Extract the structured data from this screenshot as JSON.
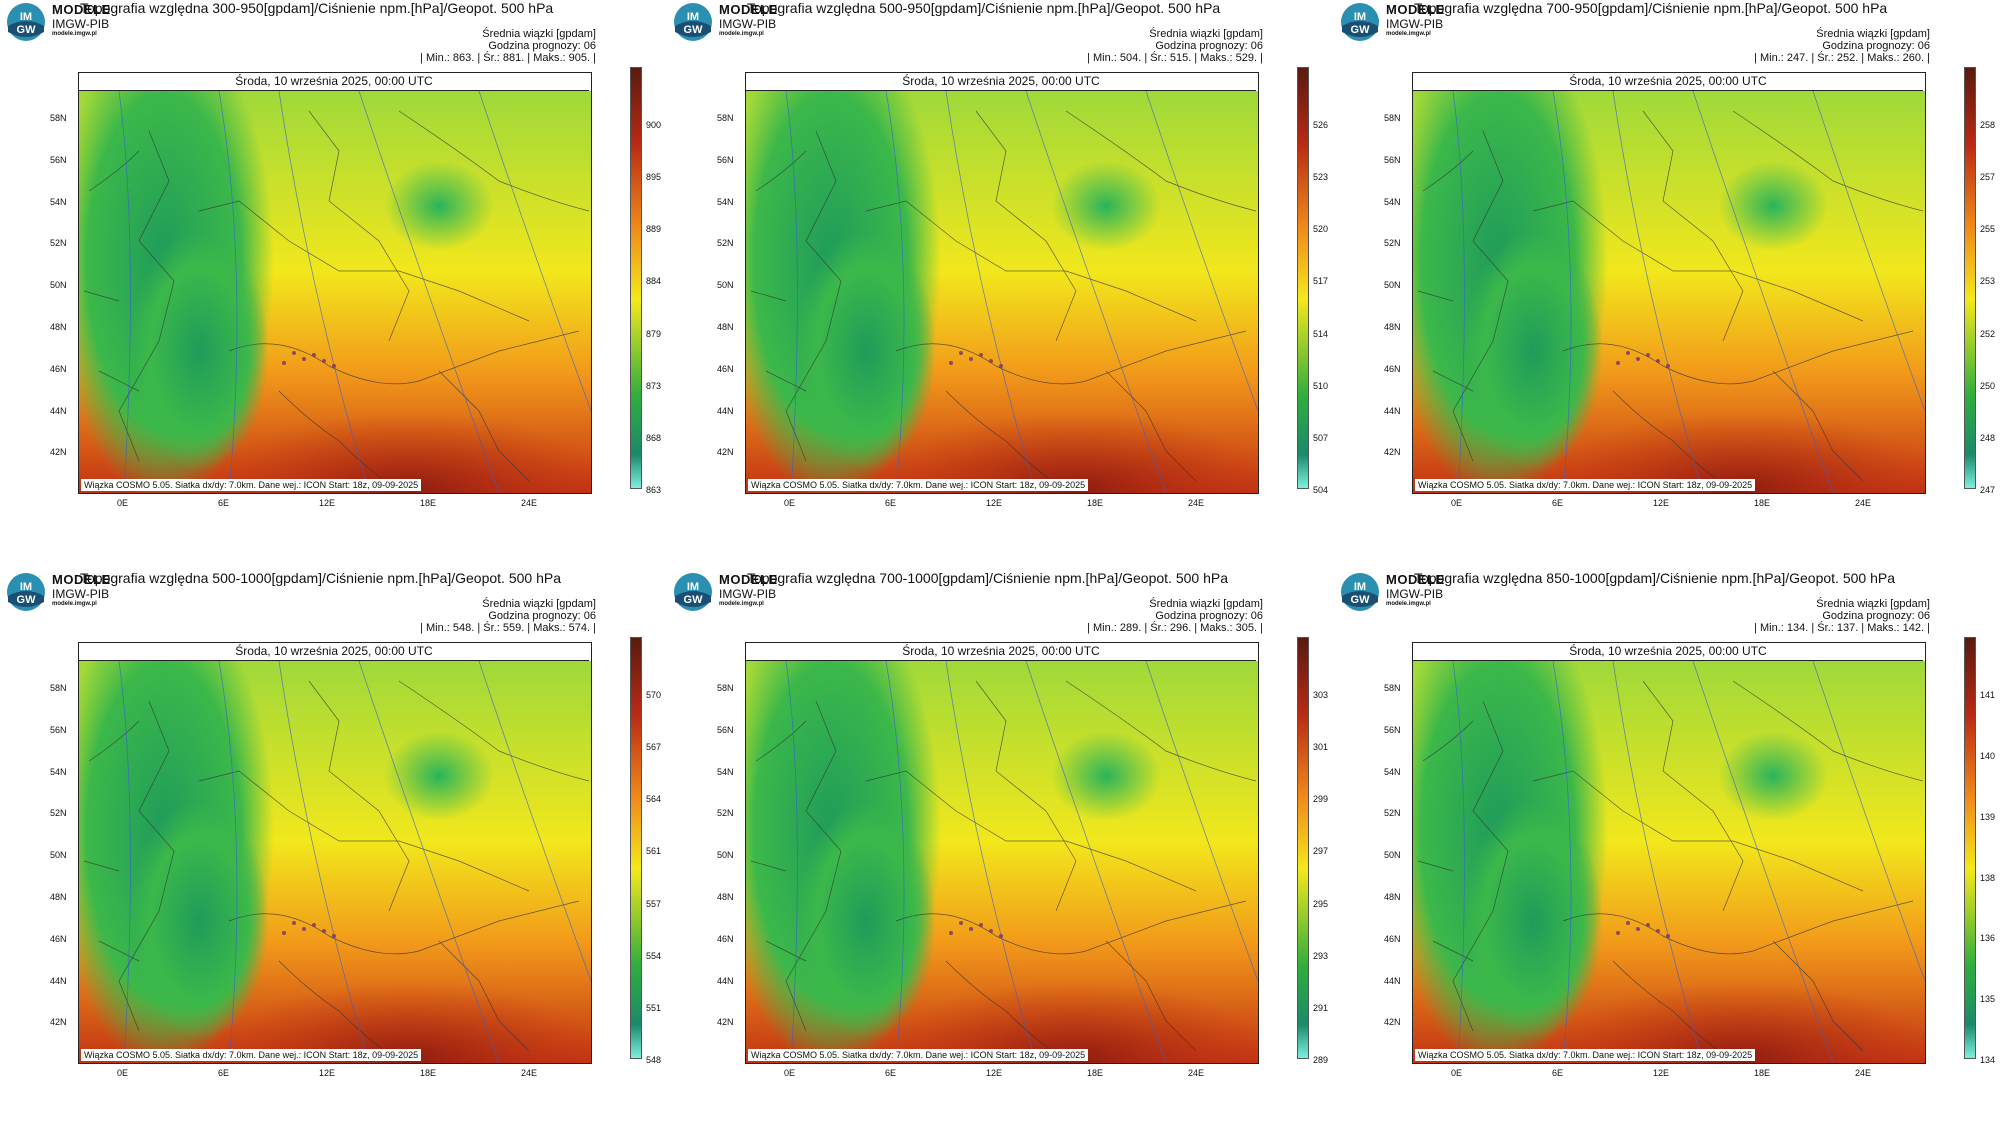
{
  "common": {
    "brand": "MODELE",
    "org": "IMGW-PIB",
    "site": "modele.imgw.pl",
    "logo_text_top": "IM",
    "logo_text_bottom": "GW",
    "subtitle": "Średnia wiązki [gpdam]",
    "hour": "Godzina prognozy: 06",
    "date": "Środa, 10 września 2025, 00:00 UTC",
    "footer": "Wiązka COSMO 5.05. Siatka dx/dy: 7.0km. Dane wej.: ICON Start: 18z, 09-09-2025",
    "lat_labels": [
      "58N",
      "56N",
      "54N",
      "52N",
      "50N",
      "48N",
      "46N",
      "44N",
      "42N"
    ],
    "lon_labels": [
      "0E",
      "6E",
      "12E",
      "18E",
      "24E"
    ],
    "colors": {
      "green": "#2fae3c",
      "yellow": "#f5e81c",
      "orange": "#f08a1a",
      "red": "#b82a14",
      "cyan": "#7cf0e0"
    }
  },
  "panels": [
    {
      "title": "Topografia względna 300-950[gpdam]/Ciśnienie npm.[hPa]/Geopot. 500 hPa",
      "stats": "| Min.:   863. | Śr.:   881. | Maks.:   905. |",
      "colorbar": [
        "900",
        "895",
        "889",
        "884",
        "879",
        "873",
        "868",
        "863"
      ]
    },
    {
      "title": "Topografia względna 500-950[gpdam]/Ciśnienie npm.[hPa]/Geopot. 500 hPa",
      "stats": "| Min.:   504. | Śr.:   515. | Maks.:   529. |",
      "colorbar": [
        "526",
        "523",
        "520",
        "517",
        "514",
        "510",
        "507",
        "504"
      ]
    },
    {
      "title": "Topografia względna 700-950[gpdam]/Ciśnienie npm.[hPa]/Geopot. 500 hPa",
      "stats": "| Min.:   247. | Śr.:   252. | Maks.:   260. |",
      "colorbar": [
        "258",
        "257",
        "255",
        "253",
        "252",
        "250",
        "248",
        "247"
      ]
    },
    {
      "title": "Topografia względna 500-1000[gpdam]/Ciśnienie npm.[hPa]/Geopot. 500 hPa",
      "stats": "| Min.:   548. | Śr.:   559. | Maks.:   574. |",
      "colorbar": [
        "570",
        "567",
        "564",
        "561",
        "557",
        "554",
        "551",
        "548"
      ]
    },
    {
      "title": "Topografia względna 700-1000[gpdam]/Ciśnienie npm.[hPa]/Geopot. 500 hPa",
      "stats": "| Min.:   289. | Śr.:   296. | Maks.:   305. |",
      "colorbar": [
        "303",
        "301",
        "299",
        "297",
        "295",
        "293",
        "291",
        "289"
      ]
    },
    {
      "title": "Topografia względna 850-1000[gpdam]/Ciśnienie npm.[hPa]/Geopot. 500 hPa",
      "stats": "| Min.:   134. | Śr.:   137. | Maks.:   142. |",
      "colorbar": [
        "141",
        "140",
        "139",
        "138",
        "136",
        "135",
        "134"
      ]
    }
  ]
}
